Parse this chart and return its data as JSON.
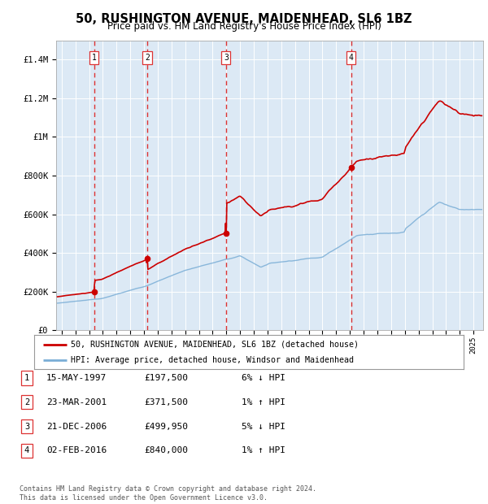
{
  "title": "50, RUSHINGTON AVENUE, MAIDENHEAD, SL6 1BZ",
  "subtitle": "Price paid vs. HM Land Registry's House Price Index (HPI)",
  "ylim": [
    0,
    1500000
  ],
  "yticks": [
    0,
    200000,
    400000,
    600000,
    800000,
    1000000,
    1200000,
    1400000
  ],
  "ytick_labels": [
    "£0",
    "£200K",
    "£400K",
    "£600K",
    "£800K",
    "£1M",
    "£1.2M",
    "£1.4M"
  ],
  "plot_bg_color": "#dce9f5",
  "sale_t": [
    1997.37,
    2001.23,
    2006.97,
    2016.09
  ],
  "sale_prices": [
    197500,
    371500,
    499950,
    840000
  ],
  "sale_labels": [
    "1",
    "2",
    "3",
    "4"
  ],
  "legend_label_red": "50, RUSHINGTON AVENUE, MAIDENHEAD, SL6 1BZ (detached house)",
  "legend_label_blue": "HPI: Average price, detached house, Windsor and Maidenhead",
  "table_rows": [
    [
      "1",
      "15-MAY-1997",
      "£197,500",
      "6% ↓ HPI"
    ],
    [
      "2",
      "23-MAR-2001",
      "£371,500",
      "1% ↑ HPI"
    ],
    [
      "3",
      "21-DEC-2006",
      "£499,950",
      "5% ↓ HPI"
    ],
    [
      "4",
      "02-FEB-2016",
      "£840,000",
      "1% ↑ HPI"
    ]
  ],
  "footer": "Contains HM Land Registry data © Crown copyright and database right 2024.\nThis data is licensed under the Open Government Licence v3.0.",
  "red_color": "#cc0000",
  "blue_color": "#7aaed6",
  "dash_color": "#dd3333",
  "xlim_start": 1994.6,
  "xlim_end": 2025.7
}
